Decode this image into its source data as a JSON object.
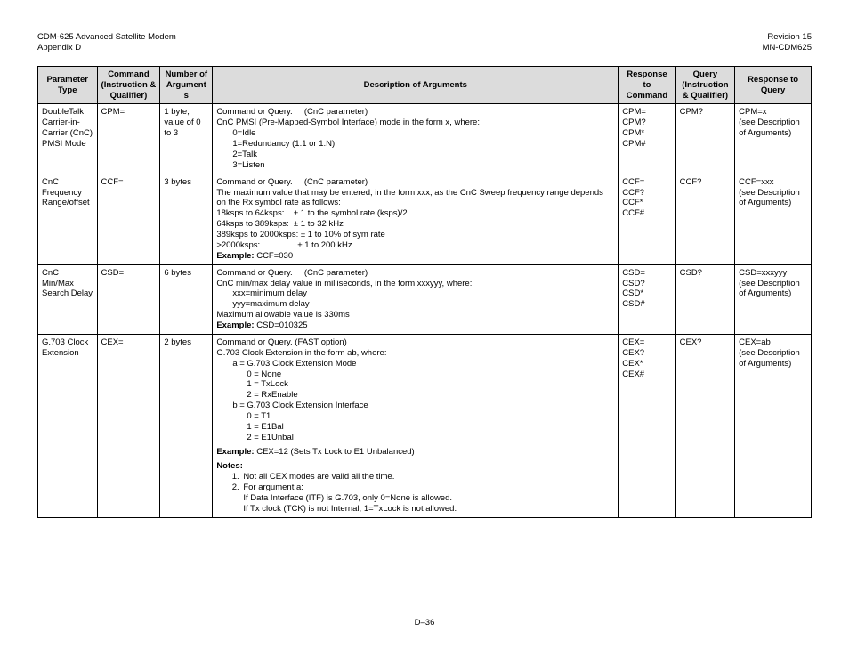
{
  "header": {
    "left_line1": "CDM-625 Advanced Satellite Modem",
    "left_line2": "Appendix D",
    "right_line1": "Revision 15",
    "right_line2": "MN-CDM625"
  },
  "columns": {
    "c1": "Parameter Type",
    "c2": "Command (Instruction & Qualifier)",
    "c3": "Number of Arguments",
    "c4": "Description of Arguments",
    "c5": "Response to Command",
    "c6": "Query (Instruction & Qualifier)",
    "c7": "Response to Query"
  },
  "widths": {
    "c1": 62,
    "c2": 66,
    "c3": 55,
    "c4": 425,
    "c5": 60,
    "c6": 62,
    "c7": 80
  },
  "rows": {
    "r1": {
      "param": "DoubleTalk Carrier-in-Carrier (CnC) PMSI Mode",
      "cmd": "CPM=",
      "nargs": "1 byte, value of 0 to 3",
      "desc_lead": "Command or Query.     (CnC parameter)",
      "desc_l1": "CnC PMSI (Pre-Mapped-Symbol Interface) mode in the form x, where:",
      "desc_i1": "0=Idle",
      "desc_i2": "1=Redundancy (1:1 or 1:N)",
      "desc_i3": "2=Talk",
      "desc_i4": "3=Listen",
      "resp_cmd": "CPM=\nCPM?\nCPM*\nCPM#",
      "query": "CPM?",
      "resp_q": "CPM=x\n(see Description of Arguments)"
    },
    "r2": {
      "param": "CnC Frequency Range/offset",
      "cmd": "CCF=",
      "nargs": "3 bytes",
      "desc_lead": "Command or Query.     (CnC parameter)",
      "desc_l1": "The maximum value that may be entered, in the form xxx, as the CnC Sweep frequency range depends on the Rx symbol rate as follows:",
      "desc_a": "18ksps to 64ksps:    ± 1 to the symbol rate (ksps)/2",
      "desc_b": "64ksps to 389ksps:  ± 1 to 32 kHz",
      "desc_c": "389ksps to 2000ksps: ± 1 to 10% of sym rate",
      "desc_d": ">2000ksps:                ± 1 to 200 kHz",
      "example_label": "Example:",
      "example_val": " CCF=030",
      "resp_cmd": "CCF=\nCCF?\nCCF*\nCCF#",
      "query": "CCF?",
      "resp_q": "CCF=xxx\n(see Description of Arguments)"
    },
    "r3": {
      "param": "CnC Min/Max Search Delay",
      "cmd": "CSD=",
      "nargs": "6 bytes",
      "desc_lead": "Command or Query.     (CnC parameter)",
      "desc_l1": "CnC min/max delay value in milliseconds, in the form xxxyyy, where:",
      "desc_i1": "xxx=minimum delay",
      "desc_i2": "yyy=maximum delay",
      "desc_l2": "Maximum allowable value is 330ms",
      "example_label": "Example:",
      "example_val": " CSD=010325",
      "resp_cmd": "CSD=\nCSD?\nCSD*\nCSD#",
      "query": "CSD?",
      "resp_q": "CSD=xxxyyy\n(see Description of Arguments)"
    },
    "r4": {
      "param": "G.703 Clock Extension",
      "cmd": "CEX=",
      "nargs": "2 bytes",
      "desc_lead": "Command or Query. (FAST option)",
      "desc_l1": "G.703 Clock Extension in the form ab, where:",
      "desc_a_head": "a = G.703 Clock Extension Mode",
      "desc_a0": "0 = None",
      "desc_a1": "1 = TxLock",
      "desc_a2": "2 = RxEnable",
      "desc_b_head": "b = G.703 Clock Extension Interface",
      "desc_b0": "0 = T1",
      "desc_b1": "1 = E1Bal",
      "desc_b2": "2 = E1Unbal",
      "example_label": "Example:",
      "example_val": " CEX=12 (Sets Tx Lock to E1 Unbalanced)",
      "notes_label": "Notes:",
      "note1": "Not all CEX modes are valid all the time.",
      "note2": "For argument a:",
      "note2a": "If Data Interface (ITF) is G.703, only 0=None is allowed.",
      "note2b": "If Tx clock (TCK) is not Internal, 1=TxLock is not allowed.",
      "resp_cmd": "CEX=\nCEX?\nCEX*\nCEX#",
      "query": "CEX?",
      "resp_q": "CEX=ab\n(see Description of Arguments)"
    }
  },
  "footer": {
    "pagenum": "D–36"
  }
}
